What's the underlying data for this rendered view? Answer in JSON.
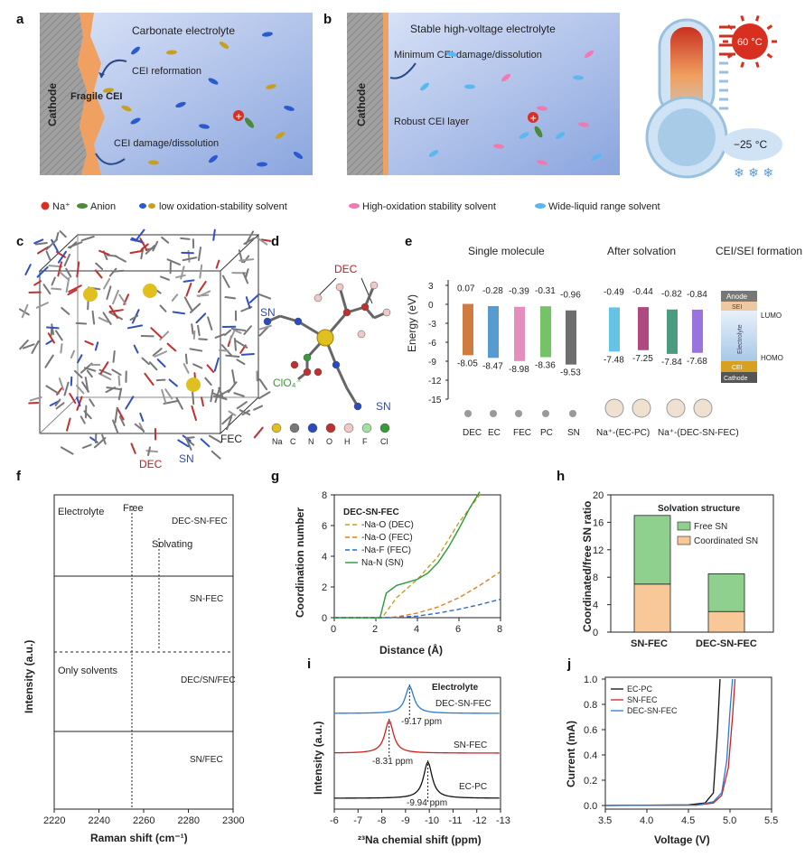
{
  "panel_labels": [
    "a",
    "b",
    "c",
    "d",
    "e",
    "f",
    "g",
    "h",
    "i",
    "j"
  ],
  "panel_a": {
    "title": "Carbonate electrolyte",
    "cathode": "Cathode",
    "fragile_cei": "Fragile CEI",
    "cei_reformation": "CEI reformation",
    "cei_damage": "CEI damage/dissolution"
  },
  "panel_b": {
    "title": "Stable high-voltage electrolyte",
    "cathode": "Cathode",
    "min_damage": "Minimum CEI damage/dissolution",
    "robust": "Robust CEI layer",
    "hot_temp": "60 °C",
    "cold_temp": "−25 °C"
  },
  "legend_ab": {
    "na": "Na⁺",
    "anion": "Anion",
    "low_ox": "low oxidation-stability solvent",
    "high_ox": "High-oxidation stability solvent",
    "wide": "Wide-liquid range solvent"
  },
  "panel_c": {
    "dec": "DEC",
    "sn": "SN",
    "fec": "FEC"
  },
  "panel_d": {
    "dec": "DEC",
    "sn1": "SN",
    "sn2": "SN",
    "clo4": "ClO₄⁻",
    "atoms": [
      "Na",
      "C",
      "N",
      "O",
      "H",
      "F",
      "Cl"
    ]
  },
  "panel_e": {
    "single": "Single molecule",
    "after": "After solvation",
    "cei": "CEI/SEI formation",
    "ylabel": "Energy (eV)",
    "yticks": [
      "3",
      "0",
      "-3",
      "-6",
      "-9",
      "-12",
      "-15"
    ],
    "lumo_labels": [
      "0.07",
      "-0.28",
      "-0.39",
      "-0.31",
      "-0.96",
      "-0.49",
      "-0.44",
      "-0.82",
      "-0.84"
    ],
    "homo_labels": [
      "-8.05",
      "-8.47",
      "-8.98",
      "-8.36",
      "-9.53",
      "-7.48",
      "-7.25",
      "-7.84",
      "-7.68"
    ],
    "mol_labels": [
      "DEC",
      "EC",
      "FEC",
      "PC",
      "SN"
    ],
    "complex_labels": [
      "Na⁺-(EC-PC)",
      "Na⁺-(DEC-SN-FEC)"
    ],
    "stack": {
      "anode": "Anode",
      "sei": "SEI",
      "electrolyte": "Electrolyte",
      "cei": "CEI",
      "cathode": "Cathode",
      "lumo": "LUMO",
      "homo": "HOMO"
    }
  },
  "panel_f": {
    "ylabel": "Intensity (a.u.)",
    "xlabel": "Raman shift (cm⁻¹)",
    "xticks": [
      "2220",
      "2240",
      "2260",
      "2280",
      "2300"
    ],
    "electrolyte": "Electrolyte",
    "free": "Free",
    "solvating": "Solvating",
    "only_solvents": "Only solvents",
    "traces": [
      "DEC-SN-FEC",
      "SN-FEC",
      "DEC/SN/FEC",
      "SN/FEC"
    ]
  },
  "panel_g": {
    "ylabel": "Coordination number",
    "xlabel": "Distance (Å)",
    "xticks": [
      "0",
      "2",
      "4",
      "6",
      "8"
    ],
    "yticks": [
      "0",
      "2",
      "4",
      "6",
      "8"
    ],
    "legend_title": "DEC-SN-FEC",
    "legend": [
      "-Na-O (DEC)",
      "-Na-O (FEC)",
      "-Na-F (FEC)",
      "Na-N (SN)"
    ]
  },
  "panel_h": {
    "ylabel": "Coordinated/free SN ratio",
    "title": "Solvation structure",
    "legend": [
      "Free SN",
      "Coordinated SN"
    ],
    "categories": [
      "SN-FEC",
      "DEC-SN-FEC"
    ],
    "yticks": [
      "0",
      "4",
      "8",
      "12",
      "16",
      "20"
    ]
  },
  "panel_i": {
    "ylabel": "Intensity (a.u.)",
    "xlabel": "²³Na chemial shift (ppm)",
    "title": "Electrolyte",
    "xticks": [
      "-6",
      "-7",
      "-8",
      "-9",
      "-10",
      "-11",
      "-12",
      "-13"
    ],
    "traces": [
      "DEC-SN-FEC",
      "SN-FEC",
      "EC-PC"
    ],
    "peaks": [
      "-9.17 ppm",
      "-8.31 ppm",
      "-9.94 ppm"
    ]
  },
  "panel_j": {
    "ylabel": "Current (mA)",
    "xlabel": "Voltage (V)",
    "xticks": [
      "3.5",
      "4.0",
      "4.5",
      "5.0",
      "5.5"
    ],
    "yticks": [
      "0.0",
      "0.2",
      "0.4",
      "0.6",
      "0.8",
      "1.0"
    ],
    "legend": [
      "EC-PC",
      "SN-FEC",
      "DEC-SN-FEC"
    ]
  },
  "chart_data": [
    {
      "type": "bar",
      "panel": "e",
      "ylabel": "Energy (eV)",
      "ylim": [
        -15,
        3
      ],
      "categories": [
        "DEC",
        "EC",
        "FEC",
        "PC",
        "SN",
        "Na⁺-(EC-PC) 1",
        "Na⁺-(EC-PC) 2",
        "Na⁺-(DEC-SN-FEC) 1",
        "Na⁺-(DEC-SN-FEC) 2"
      ],
      "series": [
        {
          "name": "LUMO",
          "values": [
            0.07,
            -0.28,
            -0.39,
            -0.31,
            -0.96,
            -0.49,
            -0.44,
            -0.82,
            -0.84
          ]
        },
        {
          "name": "HOMO",
          "values": [
            -8.05,
            -8.47,
            -8.98,
            -8.36,
            -9.53,
            -7.48,
            -7.25,
            -7.84,
            -7.68
          ]
        }
      ],
      "colors": [
        "#c8641e",
        "#3a8ac8",
        "#e07ab0",
        "#5cb84a",
        "#555555",
        "#4ab8e0",
        "#a02a6a",
        "#2a8a6a",
        "#8a5ad8"
      ]
    },
    {
      "type": "line",
      "panel": "f",
      "xlabel": "Raman shift (cm⁻¹)",
      "ylabel": "Intensity (a.u.)",
      "xlim": [
        2220,
        2300
      ],
      "series": [
        {
          "name": "DEC-SN-FEC",
          "peak_free": 2253,
          "peak_solvating": 2267
        },
        {
          "name": "SN-FEC",
          "peak_free": 2254,
          "peak_solvating": 2267
        },
        {
          "name": "DEC/SN/FEC",
          "peak_free": 2253
        },
        {
          "name": "SN/FEC",
          "peak_free": 2254
        }
      ]
    },
    {
      "type": "line",
      "panel": "g",
      "xlabel": "Distance (Å)",
      "ylabel": "Coordination number",
      "xlim": [
        0,
        8
      ],
      "ylim": [
        0,
        8
      ],
      "series": [
        {
          "name": "-Na-O (DEC)",
          "x": [
            0,
            2.3,
            3,
            4,
            5,
            6,
            7
          ],
          "y": [
            0,
            0,
            1.3,
            2.5,
            4.0,
            6.2,
            8.0
          ]
        },
        {
          "name": "-Na-O (FEC)",
          "x": [
            0,
            2.3,
            3,
            4,
            5,
            6,
            7,
            8
          ],
          "y": [
            0,
            0,
            0.05,
            0.3,
            0.7,
            1.3,
            2.1,
            3.0
          ]
        },
        {
          "name": "-Na-F (FEC)",
          "x": [
            0,
            2.5,
            3,
            4,
            5,
            6,
            7,
            8
          ],
          "y": [
            0,
            0,
            0.02,
            0.1,
            0.3,
            0.55,
            0.85,
            1.2
          ]
        },
        {
          "name": "Na-N (SN)",
          "x": [
            0,
            2.2,
            2.5,
            3,
            3.5,
            4,
            4.5,
            5,
            5.5,
            6,
            6.5,
            7
          ],
          "y": [
            0,
            0,
            1.6,
            2.1,
            2.3,
            2.5,
            2.9,
            3.6,
            4.6,
            5.8,
            7.1,
            8.4
          ]
        }
      ]
    },
    {
      "type": "bar",
      "panel": "h",
      "ylabel": "Coordinated/free SN ratio",
      "ylim": [
        0,
        20
      ],
      "categories": [
        "SN-FEC",
        "DEC-SN-FEC"
      ],
      "series": [
        {
          "name": "Coordinated SN",
          "values": [
            7,
            3
          ]
        },
        {
          "name": "Free SN",
          "values": [
            10,
            5.5
          ]
        }
      ]
    },
    {
      "type": "line",
      "panel": "i",
      "xlabel": "²³Na chemial shift (ppm)",
      "ylabel": "Intensity (a.u.)",
      "xlim": [
        -6,
        -13
      ],
      "series": [
        {
          "name": "DEC-SN-FEC",
          "peak": -9.17
        },
        {
          "name": "SN-FEC",
          "peak": -8.31
        },
        {
          "name": "EC-PC",
          "peak": -9.94
        }
      ]
    },
    {
      "type": "line",
      "panel": "j",
      "xlabel": "Voltage (V)",
      "ylabel": "Current (mA)",
      "xlim": [
        3.5,
        5.5
      ],
      "ylim": [
        0,
        1.0
      ],
      "series": [
        {
          "name": "EC-PC",
          "x": [
            3.5,
            4.5,
            4.7,
            4.8,
            4.85,
            4.88
          ],
          "y": [
            0,
            0.005,
            0.02,
            0.1,
            0.6,
            1.0
          ]
        },
        {
          "name": "SN-FEC",
          "x": [
            3.5,
            4.6,
            4.8,
            4.9,
            4.98,
            5.03,
            5.06
          ],
          "y": [
            0,
            0.003,
            0.02,
            0.08,
            0.3,
            0.7,
            1.0
          ]
        },
        {
          "name": "DEC-SN-FEC",
          "x": [
            3.5,
            4.6,
            4.8,
            4.9,
            4.96,
            5.0,
            5.03
          ],
          "y": [
            0,
            0.003,
            0.03,
            0.1,
            0.35,
            0.75,
            1.0
          ]
        }
      ]
    }
  ],
  "colors": {
    "electrolyte_bg": "#aabde8",
    "cathode_gray": "#9a9a9a",
    "cei_orange": "#f0a060",
    "hot": "#d83020",
    "bar_free": "#8fd08f",
    "bar_coord": "#f8c898",
    "ecpc": "#111111",
    "snfec": "#d02020",
    "decsnfec": "#2a7ad0"
  }
}
